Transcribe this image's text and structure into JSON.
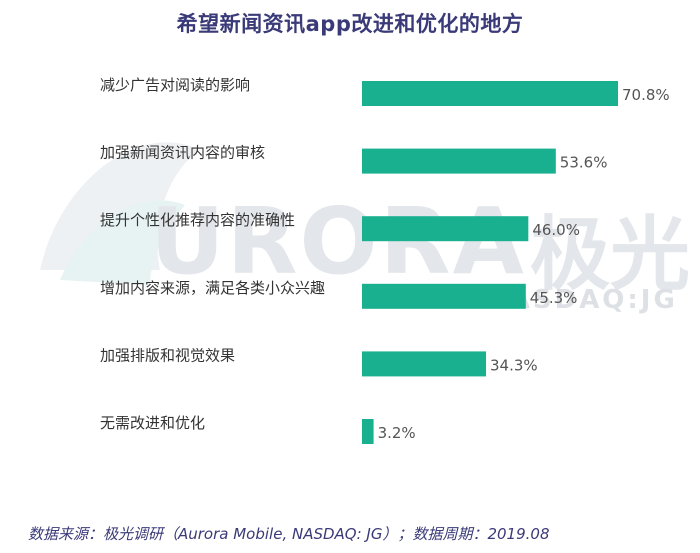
{
  "watermark": {
    "brand_text": "URORA",
    "brand_cn": "极光",
    "sub_text": "NASDAQ:JG"
  },
  "footer": {
    "source": "数据来源：极光调研（Aurora Mobile, NASDAQ: JG）；数据周期：2019.08"
  },
  "chart_data": {
    "type": "bar",
    "orientation": "horizontal",
    "title": "希望新闻资讯app改进和优化的地方",
    "categories": [
      "减少广告对阅读的影响",
      "加强新闻资讯内容的审核",
      "提升个性化推荐内容的准确性",
      "增加内容来源，满足各类小众兴趣",
      "加强排版和视觉效果",
      "无需改进和优化"
    ],
    "values": [
      70.8,
      53.6,
      46.0,
      45.3,
      34.3,
      3.2
    ],
    "value_labels": [
      "70.8%",
      "53.6%",
      "46.0%",
      "45.3%",
      "34.3%",
      "3.2%"
    ],
    "unit": "%",
    "bar_color": "#19b08f",
    "title_color": "#3a3a78",
    "grid": false,
    "legend": "none"
  }
}
